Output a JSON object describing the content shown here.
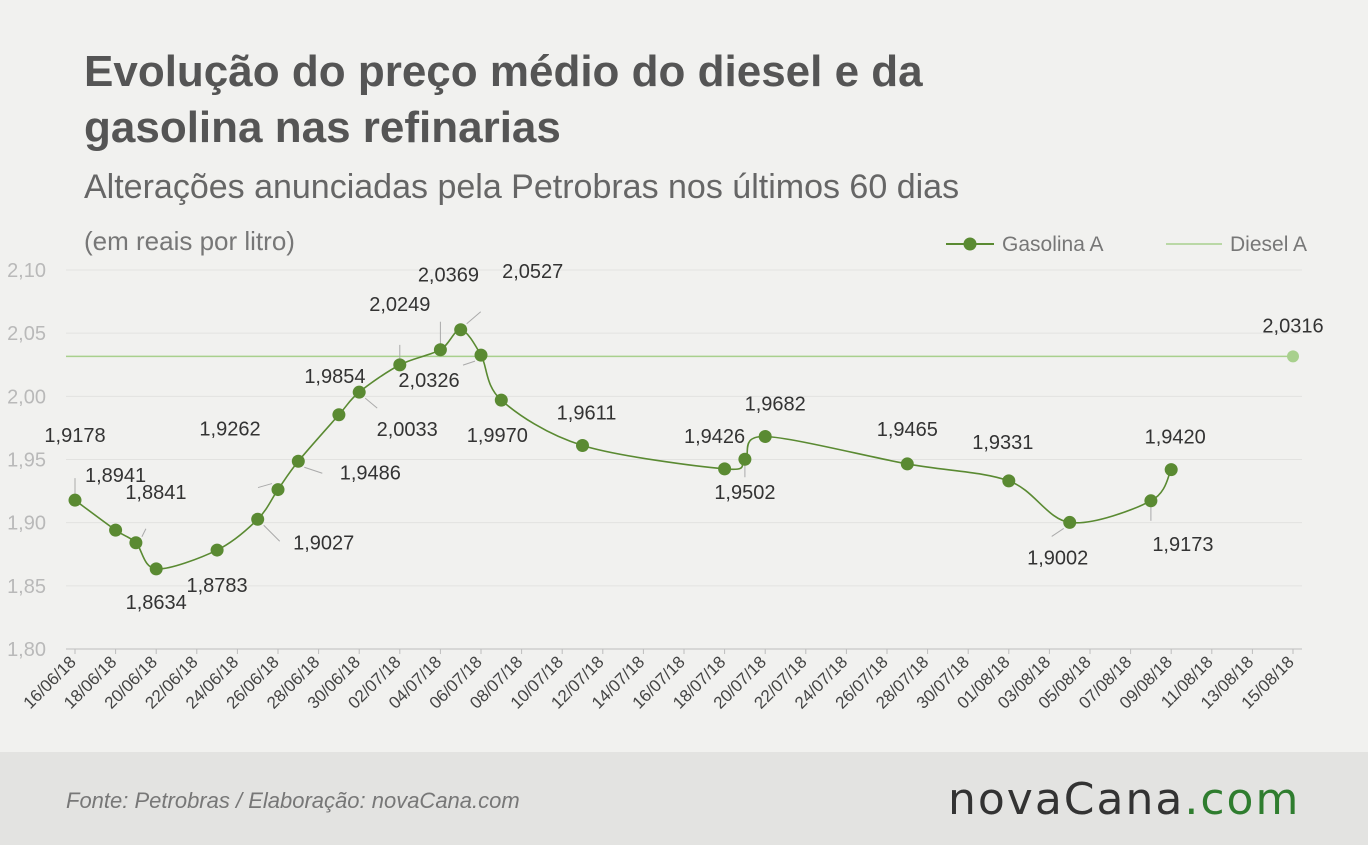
{
  "header": {
    "title": "Evolução do preço médio do diesel e da gasolina nas refinarias",
    "subtitle": "Alterações anunciadas pela Petrobras nos últimos 60 dias",
    "unit_note": "(em reais por litro)"
  },
  "footer": {
    "source": "Fonte:  Petrobras  / Elaboração:  novaCana.com",
    "logo_main": "novaCana",
    "logo_suffix": ".com"
  },
  "chart_data": {
    "type": "line",
    "ylim": [
      1.8,
      2.1
    ],
    "yticks": [
      "1,80",
      "1,85",
      "1,90",
      "1,95",
      "2,00",
      "2,05",
      "2,10"
    ],
    "ytick_values": [
      1.8,
      1.85,
      1.9,
      1.95,
      2.0,
      2.05,
      2.1
    ],
    "xticks": [
      "16/06/18",
      "18/06/18",
      "20/06/18",
      "22/06/18",
      "24/06/18",
      "26/06/18",
      "28/06/18",
      "30/06/18",
      "02/07/18",
      "04/07/18",
      "06/07/18",
      "08/07/18",
      "10/07/18",
      "12/07/18",
      "14/07/18",
      "16/07/18",
      "18/07/18",
      "20/07/18",
      "22/07/18",
      "24/07/18",
      "26/07/18",
      "28/07/18",
      "30/07/18",
      "01/08/18",
      "03/08/18",
      "05/08/18",
      "07/08/18",
      "09/08/18",
      "11/08/18",
      "13/08/18",
      "15/08/18"
    ],
    "grid": true,
    "legend_position": "top-right",
    "colors": {
      "gasolina": "#5a8a32",
      "diesel": "#a8d08d"
    },
    "series": [
      {
        "name": "Gasolina A",
        "points": [
          {
            "x": "16/06/18",
            "y": 1.9178,
            "label": "1,9178"
          },
          {
            "x": "18/06/18",
            "y": 1.8941,
            "label": "1,8941"
          },
          {
            "x": "19/06/18",
            "y": 1.8841,
            "label": "1,8841"
          },
          {
            "x": "20/06/18",
            "y": 1.8634,
            "label": "1,8634"
          },
          {
            "x": "23/06/18",
            "y": 1.8783,
            "label": "1,8783"
          },
          {
            "x": "25/06/18",
            "y": 1.9027,
            "label": "1,9027"
          },
          {
            "x": "26/06/18",
            "y": 1.9262,
            "label": "1,9262"
          },
          {
            "x": "27/06/18",
            "y": 1.9486,
            "label": "1,9486"
          },
          {
            "x": "29/06/18",
            "y": 1.9854,
            "label": "1,9854"
          },
          {
            "x": "30/06/18",
            "y": 2.0033,
            "label": "2,0033"
          },
          {
            "x": "02/07/18",
            "y": 2.0249,
            "label": "2,0249"
          },
          {
            "x": "04/07/18",
            "y": 2.0369,
            "label": "2,0369"
          },
          {
            "x": "05/07/18",
            "y": 2.0527,
            "label": "2,0527"
          },
          {
            "x": "06/07/18",
            "y": 2.0326,
            "label": "2,0326"
          },
          {
            "x": "07/07/18",
            "y": 1.997,
            "label": "1,9970"
          },
          {
            "x": "11/07/18",
            "y": 1.9611,
            "label": "1,9611"
          },
          {
            "x": "18/07/18",
            "y": 1.9426,
            "label": "1,9426"
          },
          {
            "x": "19/07/18",
            "y": 1.9502,
            "label": "1,9502"
          },
          {
            "x": "20/07/18",
            "y": 1.9682,
            "label": "1,9682"
          },
          {
            "x": "27/07/18",
            "y": 1.9465,
            "label": "1,9465"
          },
          {
            "x": "01/08/18",
            "y": 1.9331,
            "label": "1,9331"
          },
          {
            "x": "04/08/18",
            "y": 1.9002,
            "label": "1,9002"
          },
          {
            "x": "08/08/18",
            "y": 1.9173,
            "label": "1,9173"
          },
          {
            "x": "09/08/18",
            "y": 1.942,
            "label": "1,9420"
          }
        ]
      },
      {
        "name": "Diesel A",
        "points": [
          {
            "x": "16/06/18",
            "y": 2.0316
          },
          {
            "x": "15/08/18",
            "y": 2.0316,
            "label": "2,0316"
          }
        ]
      }
    ]
  }
}
